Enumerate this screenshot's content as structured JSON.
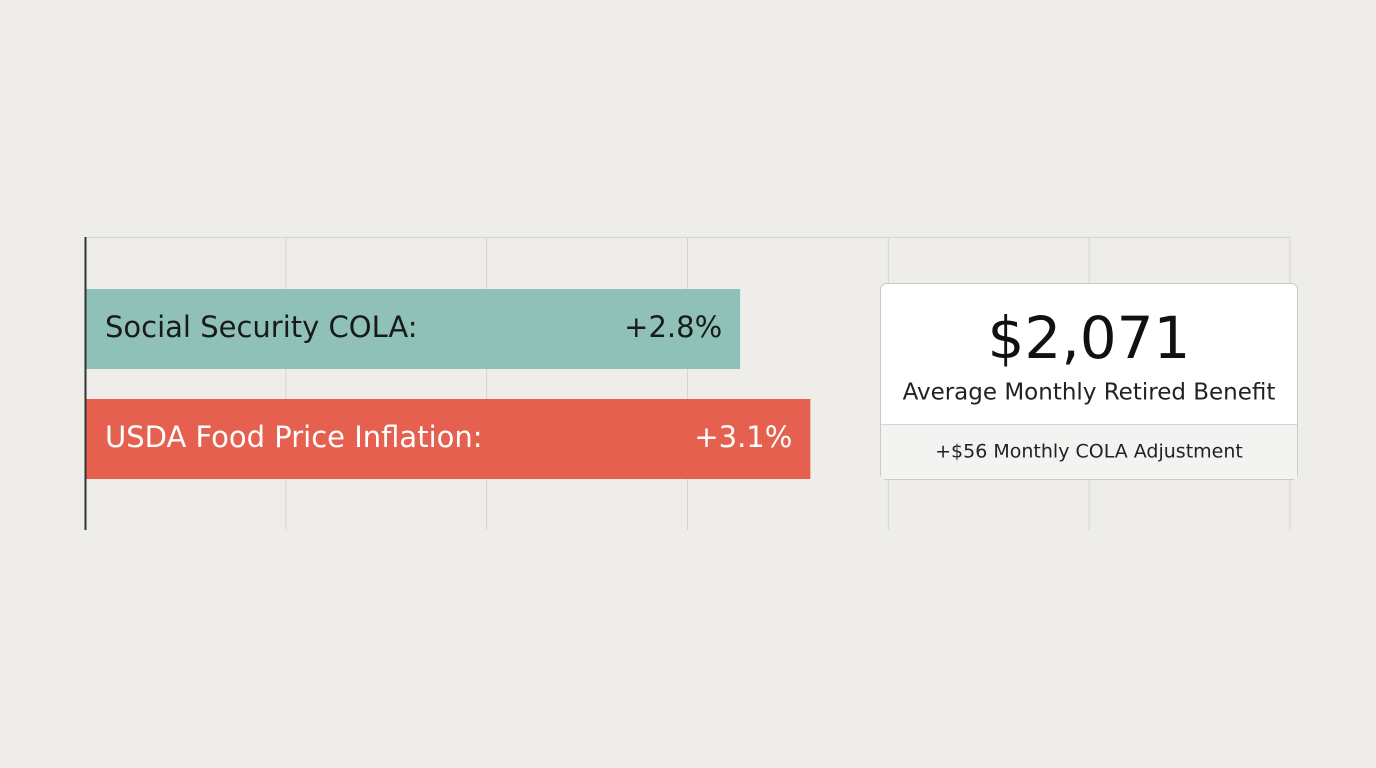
{
  "chart_data": {
    "type": "bar",
    "orientation": "horizontal",
    "categories": [
      "Social Security COLA:",
      "USDA Food Price Inflation:"
    ],
    "values": [
      2.8,
      3.1
    ],
    "value_labels": [
      "+2.8%",
      "+3.1%"
    ],
    "colors": [
      "#8fc1b9",
      "#e5604f"
    ],
    "label_colors": [
      "#1a1a1a",
      "#ffffff"
    ],
    "xlim": [
      0,
      5.15
    ],
    "grid": true
  },
  "card": {
    "value": "$2,071",
    "caption": "Average Monthly Retired Benefit",
    "footer": "+$56 Monthly COLA Adjustment"
  }
}
